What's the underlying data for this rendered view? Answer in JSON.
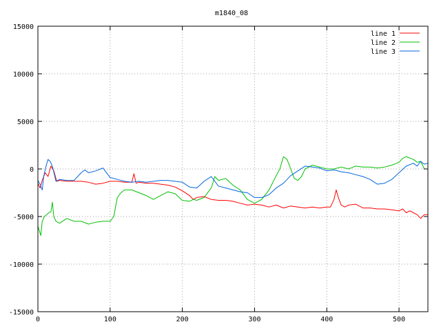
{
  "chart_data": {
    "type": "line",
    "title": "m1840_08",
    "xlabel": "",
    "ylabel": "",
    "xlim": [
      0,
      540
    ],
    "ylim": [
      -15000,
      15000
    ],
    "xticks": [
      0,
      100,
      200,
      300,
      400,
      500
    ],
    "yticks": [
      -15000,
      -10000,
      -5000,
      0,
      5000,
      10000,
      15000
    ],
    "grid": true,
    "legend_position": "top-right",
    "series": [
      {
        "name": "line 1",
        "color": "#ff0000",
        "x": [
          0,
          3,
          6,
          10,
          14,
          18,
          22,
          26,
          30,
          40,
          50,
          60,
          70,
          80,
          90,
          100,
          110,
          120,
          130,
          133,
          136,
          140,
          150,
          160,
          170,
          180,
          190,
          200,
          210,
          215,
          220,
          230,
          240,
          250,
          260,
          270,
          280,
          290,
          300,
          310,
          320,
          330,
          340,
          350,
          360,
          370,
          380,
          390,
          400,
          405,
          410,
          413,
          416,
          420,
          425,
          430,
          440,
          450,
          460,
          470,
          480,
          490,
          500,
          505,
          510,
          515,
          520,
          525,
          530,
          535,
          540
        ],
        "y": [
          -1500,
          -2000,
          -1200,
          -400,
          -800,
          300,
          -200,
          -1300,
          -1200,
          -1300,
          -1300,
          -1300,
          -1400,
          -1600,
          -1500,
          -1300,
          -1300,
          -1400,
          -1400,
          -500,
          -1500,
          -1400,
          -1500,
          -1500,
          -1600,
          -1700,
          -1900,
          -2300,
          -2800,
          -3200,
          -3000,
          -2900,
          -3200,
          -3300,
          -3300,
          -3400,
          -3600,
          -3800,
          -3700,
          -3800,
          -4000,
          -3800,
          -4100,
          -3900,
          -4000,
          -4100,
          -4000,
          -4100,
          -4000,
          -4000,
          -3200,
          -2200,
          -3000,
          -3800,
          -4000,
          -3800,
          -3700,
          -4100,
          -4100,
          -4200,
          -4200,
          -4300,
          -4400,
          -4200,
          -4600,
          -4400,
          -4600,
          -4800,
          -5200,
          -4800,
          -4800
        ]
      },
      {
        "name": "line 2",
        "color": "#00c000",
        "x": [
          0,
          2,
          4,
          6,
          9,
          12,
          15,
          18,
          20,
          22,
          25,
          30,
          40,
          50,
          60,
          70,
          75,
          80,
          90,
          100,
          105,
          110,
          115,
          120,
          130,
          140,
          150,
          160,
          170,
          180,
          190,
          200,
          210,
          215,
          220,
          230,
          240,
          245,
          250,
          260,
          270,
          280,
          290,
          300,
          310,
          320,
          330,
          335,
          340,
          345,
          350,
          355,
          360,
          365,
          370,
          380,
          390,
          400,
          410,
          420,
          430,
          440,
          450,
          460,
          470,
          480,
          490,
          500,
          505,
          510,
          520,
          525,
          530,
          535,
          540
        ],
        "y": [
          -6000,
          -6500,
          -7000,
          -5500,
          -5000,
          -4800,
          -4600,
          -4500,
          -3500,
          -5000,
          -5500,
          -5700,
          -5200,
          -5500,
          -5500,
          -5800,
          -5700,
          -5600,
          -5500,
          -5500,
          -5000,
          -3000,
          -2500,
          -2200,
          -2200,
          -2500,
          -2800,
          -3200,
          -2800,
          -2400,
          -2600,
          -3300,
          -3400,
          -3200,
          -3300,
          -3000,
          -2000,
          -800,
          -1200,
          -1000,
          -1700,
          -2200,
          -3200,
          -3600,
          -3200,
          -2200,
          -700,
          0,
          1300,
          1000,
          0,
          -1000,
          -1200,
          -800,
          0,
          400,
          200,
          0,
          0,
          200,
          0,
          300,
          200,
          200,
          100,
          200,
          400,
          700,
          1100,
          1300,
          1000,
          700,
          800,
          0,
          0
        ]
      },
      {
        "name": "line 3",
        "color": "#0066dd",
        "x": [
          0,
          3,
          6,
          8,
          10,
          12,
          14,
          17,
          20,
          25,
          30,
          40,
          50,
          60,
          65,
          70,
          80,
          90,
          100,
          110,
          120,
          130,
          140,
          150,
          160,
          170,
          180,
          190,
          200,
          210,
          220,
          230,
          240,
          250,
          260,
          270,
          280,
          290,
          300,
          310,
          320,
          330,
          340,
          350,
          360,
          370,
          380,
          390,
          400,
          410,
          420,
          430,
          440,
          450,
          460,
          470,
          480,
          490,
          500,
          510,
          520,
          525,
          530,
          535,
          540
        ],
        "y": [
          -1200,
          -1600,
          -2200,
          -800,
          -100,
          500,
          1000,
          800,
          300,
          -1300,
          -1100,
          -1200,
          -1200,
          -400,
          -100,
          -400,
          -200,
          100,
          -900,
          -1100,
          -1300,
          -1400,
          -1300,
          -1400,
          -1300,
          -1200,
          -1200,
          -1300,
          -1400,
          -1900,
          -2000,
          -1300,
          -800,
          -1800,
          -2000,
          -2200,
          -2400,
          -2500,
          -3000,
          -3000,
          -2700,
          -2000,
          -1500,
          -700,
          -200,
          300,
          200,
          100,
          -200,
          -100,
          -300,
          -400,
          -600,
          -800,
          -1100,
          -1600,
          -1500,
          -1100,
          -400,
          300,
          600,
          300,
          800,
          500,
          600
        ]
      }
    ]
  }
}
